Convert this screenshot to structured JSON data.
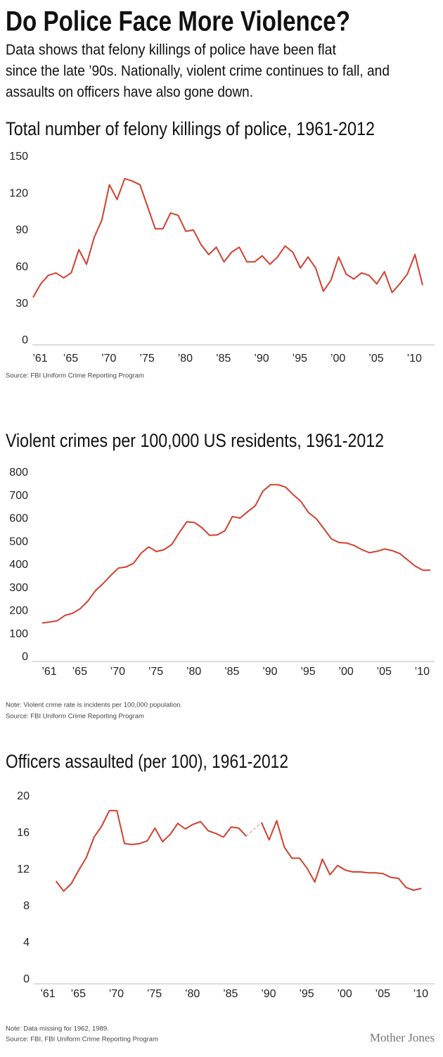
{
  "header": {
    "title": "Do Police Face More Violence?",
    "subtitle": [
      "Data shows that felony killings of police have been flat",
      "since the late ’90s. Nationally, violent crime continues to fall, and",
      "assaults on officers have also gone down."
    ]
  },
  "chart_data": [
    {
      "type": "line",
      "title": "Total number of felony killings of police, 1961-2012",
      "color": "#d2402e",
      "x": [
        1961,
        1962,
        1963,
        1964,
        1965,
        1966,
        1967,
        1968,
        1969,
        1970,
        1971,
        1972,
        1973,
        1974,
        1975,
        1976,
        1977,
        1978,
        1979,
        1980,
        1981,
        1982,
        1983,
        1984,
        1985,
        1986,
        1987,
        1988,
        1989,
        1990,
        1991,
        1992,
        1993,
        1994,
        1995,
        1996,
        1997,
        1998,
        1999,
        2000,
        2001,
        2002,
        2003,
        2004,
        2005,
        2006,
        2007,
        2008,
        2009,
        2010,
        2011,
        2012
      ],
      "values": [
        37,
        48,
        55,
        57,
        53,
        57,
        76,
        64,
        86,
        100,
        129,
        117,
        134,
        132,
        129,
        111,
        93,
        93,
        106,
        104,
        91,
        92,
        80,
        72,
        78,
        66,
        74,
        78,
        66,
        66,
        71,
        64,
        70,
        79,
        74,
        61,
        70,
        61,
        42,
        51,
        70,
        56,
        52,
        57,
        55,
        48,
        58,
        41,
        48,
        56,
        72,
        47
      ],
      "xlim": [
        1961,
        2012
      ],
      "xticks": [
        {
          "value": 1961,
          "label": "’61"
        },
        {
          "value": 1965,
          "label": "’65"
        },
        {
          "value": 1970,
          "label": "’70"
        },
        {
          "value": 1975,
          "label": "’75"
        },
        {
          "value": 1980,
          "label": "’80"
        },
        {
          "value": 1985,
          "label": "’85"
        },
        {
          "value": 1990,
          "label": "’90"
        },
        {
          "value": 1995,
          "label": "’95"
        },
        {
          "value": 2000,
          "label": "’00"
        },
        {
          "value": 2005,
          "label": "’05"
        },
        {
          "value": 2010,
          "label": "’10"
        }
      ],
      "ylim": [
        0,
        150
      ],
      "yticks": [
        0,
        30,
        60,
        90,
        120,
        150
      ],
      "notes": [
        "Source: FBI Uniform Crime Reporting Program"
      ]
    },
    {
      "type": "line",
      "title": "Violent crimes per 100,000 US residents, 1961-2012",
      "color": "#d2402e",
      "x": [
        1961,
        1962,
        1963,
        1964,
        1965,
        1966,
        1967,
        1968,
        1969,
        1970,
        1971,
        1972,
        1973,
        1974,
        1975,
        1976,
        1977,
        1978,
        1979,
        1980,
        1981,
        1982,
        1983,
        1984,
        1985,
        1986,
        1987,
        1988,
        1989,
        1990,
        1991,
        1992,
        1993,
        1994,
        1995,
        1996,
        1997,
        1998,
        1999,
        2000,
        2001,
        2002,
        2003,
        2004,
        2005,
        2006,
        2007,
        2008,
        2009,
        2010,
        2011,
        2012
      ],
      "values": [
        158,
        162,
        168,
        191,
        200,
        220,
        253,
        298,
        329,
        364,
        396,
        401,
        417,
        461,
        488,
        468,
        476,
        498,
        549,
        597,
        594,
        571,
        538,
        540,
        558,
        620,
        613,
        641,
        667,
        730,
        758,
        758,
        747,
        714,
        685,
        637,
        611,
        568,
        523,
        507,
        505,
        494,
        476,
        463,
        469,
        479,
        472,
        459,
        432,
        405,
        387,
        387
      ],
      "xlim": [
        1961,
        2012
      ],
      "xticks": [
        {
          "value": 1961,
          "label": "’61"
        },
        {
          "value": 1965,
          "label": "’65"
        },
        {
          "value": 1970,
          "label": "’70"
        },
        {
          "value": 1975,
          "label": "’75"
        },
        {
          "value": 1980,
          "label": "’80"
        },
        {
          "value": 1985,
          "label": "’85"
        },
        {
          "value": 1990,
          "label": "’90"
        },
        {
          "value": 1995,
          "label": "’95"
        },
        {
          "value": 2000,
          "label": "’00"
        },
        {
          "value": 2005,
          "label": "’05"
        },
        {
          "value": 2010,
          "label": "’10"
        }
      ],
      "ylim": [
        0,
        800
      ],
      "yticks": [
        0,
        100,
        200,
        300,
        400,
        500,
        600,
        700,
        800
      ],
      "notes": [
        "Note: Violent crime rate is incidents per 100,000 population.",
        "Source: FBI Uniform Crime Reporting Program"
      ]
    },
    {
      "type": "line",
      "title": "Officers assaulted (per 100), 1961-2012",
      "color": "#d2402e",
      "gap_color": "#f2a59c",
      "x": [
        1963,
        1964,
        1965,
        1966,
        1967,
        1968,
        1969,
        1970,
        1971,
        1972,
        1973,
        1974,
        1975,
        1976,
        1977,
        1978,
        1979,
        1980,
        1981,
        1982,
        1983,
        1984,
        1985,
        1986,
        1987,
        1988,
        1989,
        1990,
        1991,
        1992,
        1993,
        1994,
        1995,
        1996,
        1997,
        1998,
        1999,
        2000,
        2001,
        2002,
        2003,
        2004,
        2005,
        2006,
        2007,
        2008,
        2009,
        2010,
        2011
      ],
      "values": [
        11.0,
        9.9,
        10.7,
        12.2,
        13.6,
        15.8,
        17.0,
        18.7,
        18.7,
        15.1,
        15.0,
        15.1,
        15.4,
        16.8,
        15.3,
        16.1,
        17.3,
        16.7,
        17.2,
        17.5,
        16.5,
        16.2,
        15.8,
        16.9,
        16.8,
        15.9,
        null,
        17.4,
        15.5,
        17.6,
        14.7,
        13.5,
        13.5,
        12.4,
        10.9,
        13.4,
        11.7,
        12.7,
        12.2,
        12.0,
        12.0,
        11.9,
        11.9,
        11.8,
        11.4,
        11.3,
        10.3,
        10.0,
        10.2
      ],
      "xlim": [
        1961,
        2012
      ],
      "xticks": [
        {
          "value": 1961,
          "label": "’61"
        },
        {
          "value": 1965,
          "label": "’65"
        },
        {
          "value": 1970,
          "label": "’70"
        },
        {
          "value": 1975,
          "label": "’75"
        },
        {
          "value": 1980,
          "label": "’80"
        },
        {
          "value": 1985,
          "label": "’85"
        },
        {
          "value": 1990,
          "label": "’90"
        },
        {
          "value": 1995,
          "label": "’95"
        },
        {
          "value": 2000,
          "label": "’00"
        },
        {
          "value": 2005,
          "label": "’05"
        },
        {
          "value": 2010,
          "label": "’10"
        }
      ],
      "ylim": [
        0,
        20
      ],
      "yticks": [
        0,
        4,
        8,
        12,
        16,
        20
      ],
      "notes": [
        "Note: Data missing for 1962, 1989.",
        "Source: FBI, FBI Uniform Crime Reporting Program"
      ]
    }
  ],
  "footer": {
    "brand": "Mother Jones"
  }
}
